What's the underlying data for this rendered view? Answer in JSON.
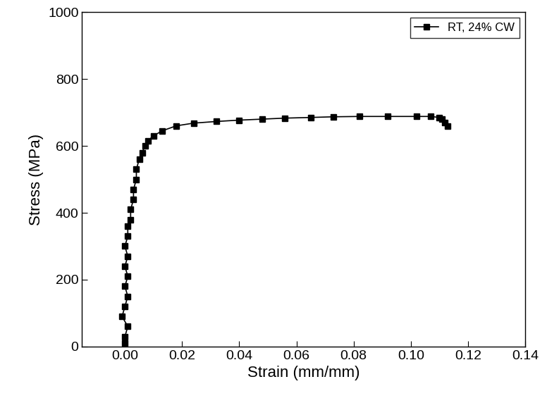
{
  "chart_data": {
    "type": "line",
    "x_label": "Strain (mm/mm)",
    "y_label": "Stress (MPa)",
    "legend": "upper right",
    "series": [
      {
        "name": "RT, 24% CW",
        "color": "#000000",
        "marker": "square",
        "line_style": "solid",
        "x": [
          0.0,
          0.0,
          0.001,
          -0.001,
          0.0,
          0.001,
          0.0,
          0.001,
          0.0,
          0.001,
          0.0,
          0.001,
          0.001,
          0.002,
          0.002,
          0.003,
          0.003,
          0.004,
          0.004,
          0.005,
          0.006,
          0.007,
          0.008,
          0.01,
          0.013,
          0.018,
          0.024,
          0.032,
          0.04,
          0.048,
          0.056,
          0.065,
          0.073,
          0.082,
          0.092,
          0.102,
          0.107,
          0.11,
          0.111,
          0.112,
          0.113
        ],
        "values": [
          10,
          30,
          60,
          90,
          120,
          150,
          180,
          210,
          240,
          270,
          300,
          330,
          360,
          380,
          410,
          440,
          470,
          500,
          530,
          560,
          580,
          600,
          615,
          630,
          645,
          660,
          668,
          673,
          677,
          680,
          683,
          685,
          687,
          688,
          688,
          688,
          688,
          685,
          680,
          670,
          660
        ]
      }
    ],
    "xlim": [
      -0.015,
      0.14
    ],
    "xticks": [
      {
        "value": 0,
        "label": "0.00"
      },
      {
        "value": 0.02,
        "label": "0.02"
      },
      {
        "value": 0.04,
        "label": "0.04"
      },
      {
        "value": 0.06,
        "label": "0.06"
      },
      {
        "value": 0.08,
        "label": "0.08"
      },
      {
        "value": 0.1,
        "label": "0.10"
      },
      {
        "value": 0.12,
        "label": "0.12"
      },
      {
        "value": 0.14,
        "label": "0.14"
      }
    ],
    "ylim": [
      0,
      1000
    ],
    "yticks": [
      0,
      200,
      400,
      600,
      800,
      1000
    ]
  }
}
